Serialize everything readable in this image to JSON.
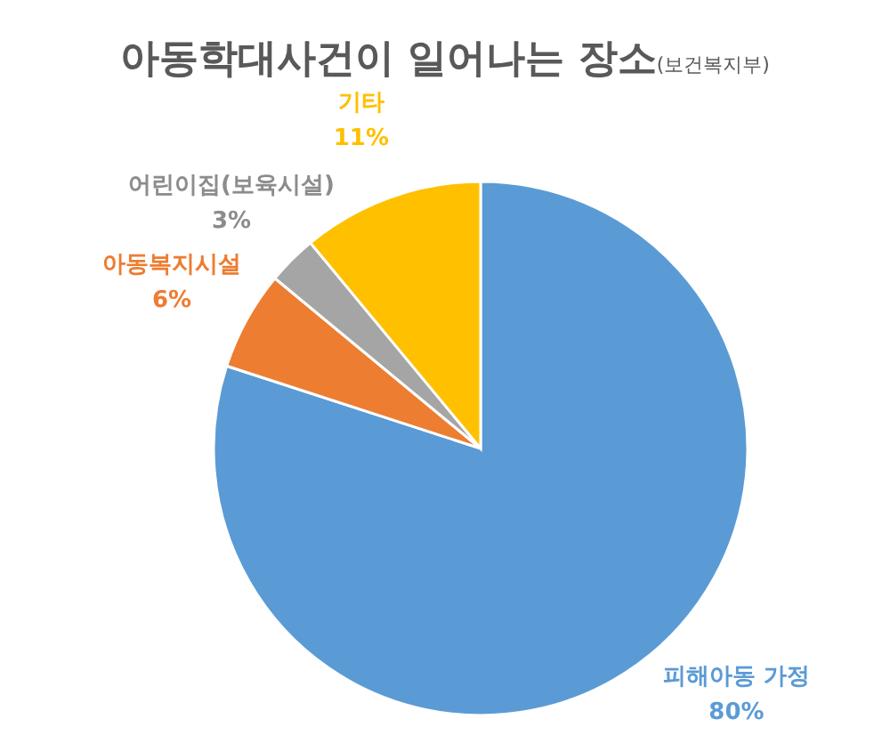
{
  "chart_data": {
    "type": "pie",
    "title": "아동학대사건이 일어나는 장소",
    "subtitle": "(보건복지부)",
    "categories": [
      "피해아동 가정",
      "아동복지시설",
      "어린이집(보육시설)",
      "기타"
    ],
    "values": [
      80,
      6,
      3,
      11
    ],
    "colors": [
      "#5b9bd5",
      "#ed7d31",
      "#a5a5a5",
      "#ffc000"
    ],
    "value_labels": [
      "80%",
      "6%",
      "3%",
      "11%"
    ]
  }
}
